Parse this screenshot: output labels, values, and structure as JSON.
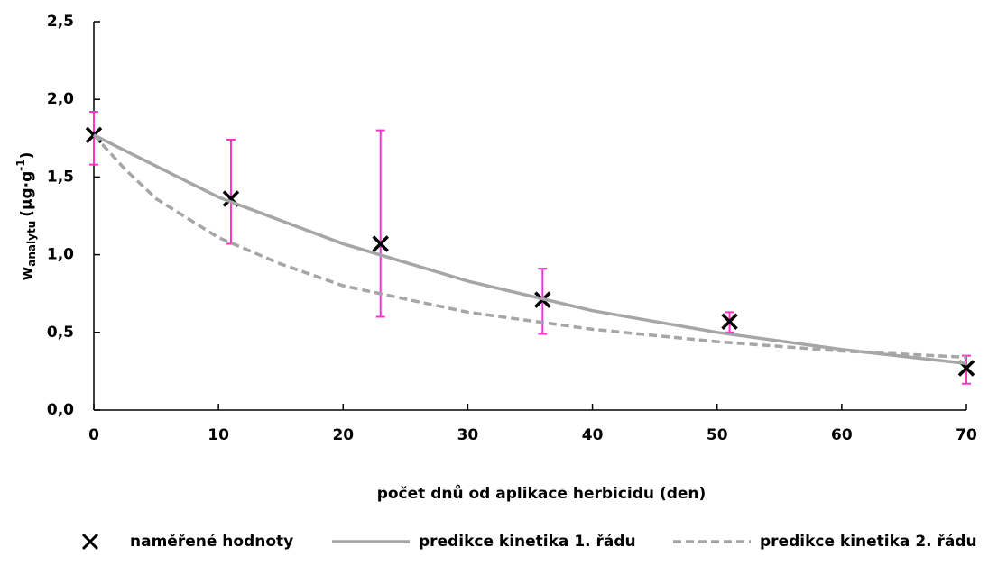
{
  "chart_data": {
    "type": "scatter",
    "x_label": "počet dnů od aplikace herbicidu (den)",
    "y_label": {
      "base": "w",
      "sub": "analytu",
      "unit": "(µg·g",
      "sup": "-1",
      "close": ")"
    },
    "xlim": [
      0,
      70
    ],
    "xticks": [
      0,
      10,
      20,
      30,
      40,
      50,
      60,
      70
    ],
    "ylim": [
      0,
      2.5
    ],
    "yticks": [
      {
        "value": 0,
        "label": "0,0"
      },
      {
        "value": 0.5,
        "label": "0,5"
      },
      {
        "value": 1,
        "label": "1,0"
      },
      {
        "value": 1.5,
        "label": "1,5"
      },
      {
        "value": 2,
        "label": "2,0"
      },
      {
        "value": 2.5,
        "label": "2,5"
      }
    ],
    "grid": false,
    "legend": "bottom",
    "series": [
      {
        "name": "naměřené hodnoty",
        "kind": "points",
        "color": "#000000",
        "err_color": "#ff33cc",
        "x": [
          0,
          11,
          23,
          36,
          51,
          70
        ],
        "values": [
          1.77,
          1.36,
          1.07,
          0.71,
          0.57,
          0.27
        ],
        "err_minus": [
          0.19,
          0.29,
          0.47,
          0.22,
          0.07,
          0.1
        ],
        "err_plus": [
          0.15,
          0.38,
          0.73,
          0.2,
          0.06,
          0.08
        ]
      },
      {
        "name": "predikce kinetika 1. řádu",
        "kind": "line",
        "color": "#a6a6a6",
        "dashed": false,
        "x": [
          0,
          10,
          20,
          30,
          40,
          50,
          60,
          70
        ],
        "values": [
          1.77,
          1.37,
          1.07,
          0.83,
          0.64,
          0.5,
          0.39,
          0.3
        ]
      },
      {
        "name": "predikce kinetika 2. řádu",
        "kind": "line",
        "color": "#a6a6a6",
        "dashed": true,
        "x": [
          0,
          2.5,
          5,
          10,
          15,
          20,
          30,
          40,
          50,
          60,
          70
        ],
        "values": [
          1.77,
          1.55,
          1.36,
          1.11,
          0.94,
          0.8,
          0.63,
          0.52,
          0.44,
          0.38,
          0.34
        ]
      }
    ]
  }
}
